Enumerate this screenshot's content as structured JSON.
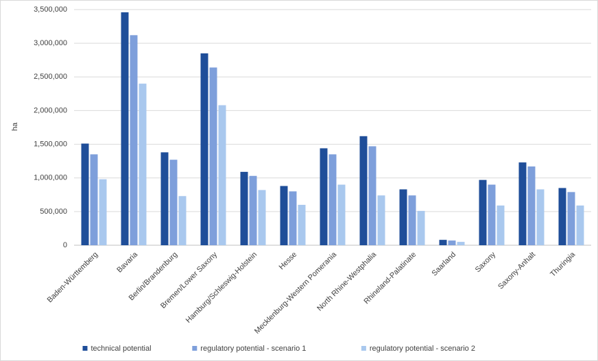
{
  "chart_data": {
    "type": "bar",
    "y_label": "ha",
    "categories": [
      "Baden-Württemberg",
      "Bavaria",
      "Berlin/Brandenburg",
      "Bremen/Lower Saxony",
      "Hamburg/Schleswig-Holstein",
      "Hesse",
      "Mecklenburg-Western Pomerania",
      "North Rhine-Westphalia",
      "Rhineland-Palatinate",
      "Saarland",
      "Saxony",
      "Saxony-Anhalt",
      "Thuringia"
    ],
    "series": [
      {
        "name": "technical potential",
        "color": "#1f4e99",
        "values": [
          1510000,
          3460000,
          1380000,
          2850000,
          1090000,
          880000,
          1440000,
          1620000,
          830000,
          80000,
          970000,
          1230000,
          850000
        ]
      },
      {
        "name": "regulatory potential - scenario 1",
        "color": "#7e9fdb",
        "values": [
          1350000,
          3120000,
          1270000,
          2640000,
          1030000,
          800000,
          1350000,
          1470000,
          740000,
          70000,
          900000,
          1170000,
          790000
        ]
      },
      {
        "name": "regulatory potential - scenario 2",
        "color": "#a9c8ee",
        "values": [
          980000,
          2400000,
          730000,
          2080000,
          820000,
          600000,
          900000,
          740000,
          510000,
          50000,
          590000,
          830000,
          590000
        ]
      }
    ],
    "ylim": [
      0,
      3500000
    ],
    "yticks": [
      {
        "value": 0,
        "label": "0"
      },
      {
        "value": 500000,
        "label": "500,000"
      },
      {
        "value": 1000000,
        "label": "1,000,000"
      },
      {
        "value": 1500000,
        "label": "1,500,000"
      },
      {
        "value": 2000000,
        "label": "2,000,000"
      },
      {
        "value": 2500000,
        "label": "2,500,000"
      },
      {
        "value": 3000000,
        "label": "3,000,000"
      },
      {
        "value": 3500000,
        "label": "3,500,000"
      }
    ],
    "grid": true,
    "legend": "bottom"
  }
}
